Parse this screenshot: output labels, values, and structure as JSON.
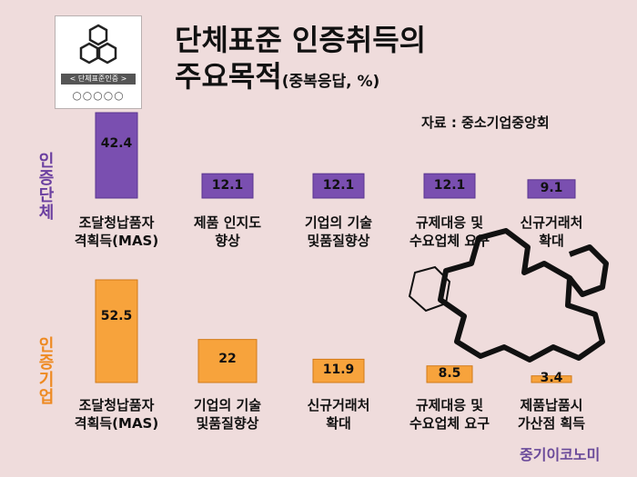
{
  "logo": {
    "banner": "< 단체표준인증 >",
    "circles": "○○○○○"
  },
  "title": {
    "line1": "단체표준 인증취득의",
    "line2": "주요목적",
    "note": "(중복응답, %)"
  },
  "source": "자료 : 중소기업중앙회",
  "brand": "중기이코노미",
  "colors": {
    "group1_bar": "#7a4fb0",
    "group2_bar": "#f7a33c",
    "background": "#efdcdc"
  },
  "chart_data": [
    {
      "type": "bar",
      "group": "인증단체",
      "categories": [
        "조달청납품자\n격획득(MAS)",
        "제품 인지도\n향상",
        "기업의 기술\n및품질향상",
        "규제대응 및\n수요업체 요구",
        "신규거래처\n확대"
      ],
      "values": [
        42.4,
        12.1,
        12.1,
        12.1,
        9.1
      ],
      "value_labels": [
        "42.4",
        "12.1",
        "12.1",
        "12.1",
        "9.1"
      ],
      "ylim": [
        0,
        60
      ]
    },
    {
      "type": "bar",
      "group": "인증기업",
      "categories": [
        "조달청납품자\n격획득(MAS)",
        "기업의 기술\n및품질향상",
        "신규거래처\n확대",
        "규제대응 및\n수요업체 요구",
        "제품납품시\n가산점 획득"
      ],
      "values": [
        52.5,
        22,
        11.9,
        8.5,
        3.4
      ],
      "value_labels": [
        "52.5",
        "22",
        "11.9",
        "8.5",
        "3.4"
      ],
      "ylim": [
        0,
        60
      ]
    }
  ]
}
